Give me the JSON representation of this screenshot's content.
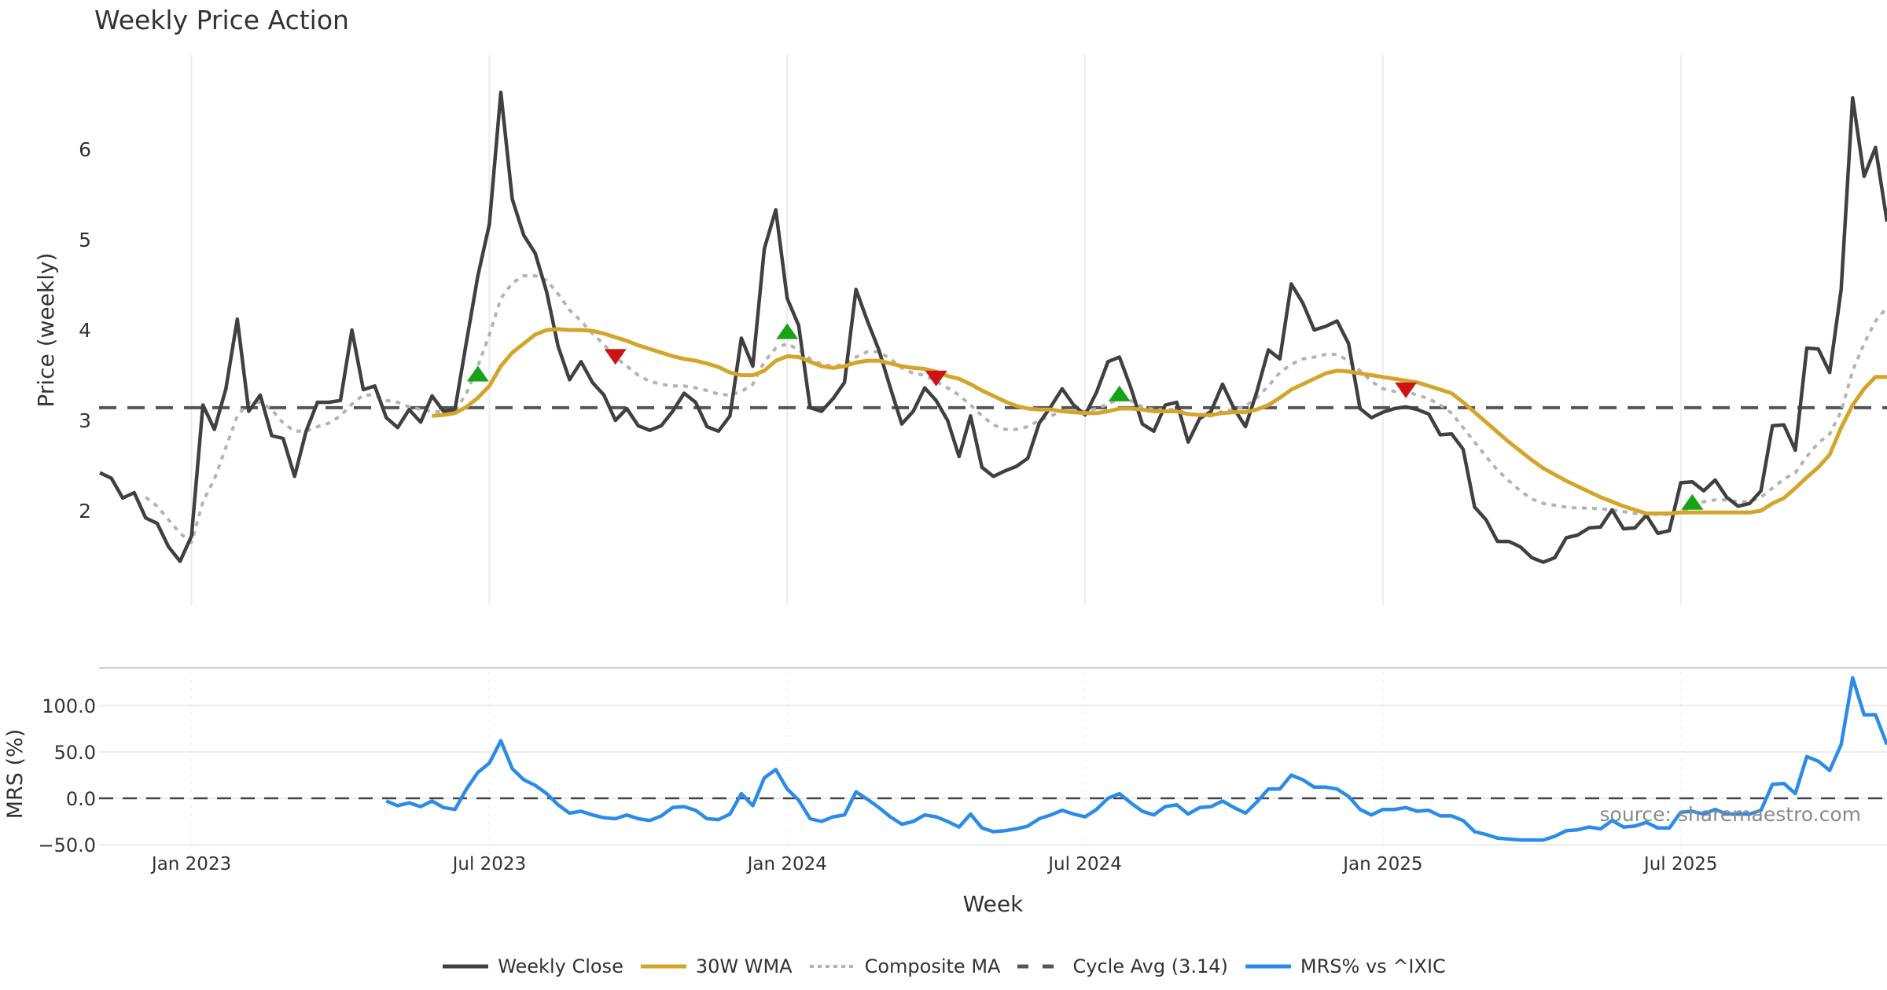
{
  "chart_data": {
    "type": "line",
    "title": "Weekly Price Action",
    "xlabel": "Week",
    "source": "source: sharemaestro.com",
    "colors": {
      "close": "#404040",
      "wma": "#d4a52a",
      "composite": "#b3b3b3",
      "cycle": "#555555",
      "mrs": "#2a8ce8",
      "buy": "#17a317",
      "sell": "#cc1414",
      "grid": "#e9ecf1"
    },
    "x_ticks": [
      {
        "label": "Jan 2023",
        "week_index": 8
      },
      {
        "label": "Jul 2023",
        "week_index": 34
      },
      {
        "label": "Jan 2024",
        "week_index": 60
      },
      {
        "label": "Jul 2024",
        "week_index": 86
      },
      {
        "label": "Jan 2025",
        "week_index": 112
      },
      {
        "label": "Jul 2025",
        "week_index": 138
      }
    ],
    "price_panel": {
      "ylabel": "Price (weekly)",
      "ylim": [
        0.96,
        7.04
      ],
      "y_ticks": [
        {
          "value": 2,
          "label": "2"
        },
        {
          "value": 3,
          "label": "3"
        },
        {
          "value": 4,
          "label": "4"
        },
        {
          "value": 5,
          "label": "5"
        },
        {
          "value": 6,
          "label": "6"
        }
      ],
      "cycle_avg": 3.14
    },
    "mrs_panel": {
      "ylabel": "MRS (%)",
      "ylim": [
        -55,
        140
      ],
      "y_ticks": [
        {
          "value": -50,
          "label": "−50.0"
        },
        {
          "value": 0,
          "label": "0.0"
        },
        {
          "value": 50,
          "label": "50.0"
        },
        {
          "value": 100,
          "label": "100.0"
        }
      ],
      "zero_line": 0
    },
    "series": [
      {
        "name": "Weekly Close",
        "key": "close",
        "start_index": 0,
        "values": [
          2.42,
          2.36,
          2.14,
          2.2,
          1.92,
          1.86,
          1.6,
          1.44,
          1.72,
          3.17,
          2.9,
          3.35,
          4.12,
          3.1,
          3.28,
          2.83,
          2.8,
          2.38,
          2.88,
          3.2,
          3.2,
          3.22,
          4.0,
          3.34,
          3.38,
          3.03,
          2.92,
          3.12,
          2.98,
          3.27,
          3.1,
          3.12,
          3.87,
          4.6,
          5.17,
          6.63,
          5.45,
          5.05,
          4.85,
          4.42,
          3.82,
          3.45,
          3.65,
          3.42,
          3.28,
          3.0,
          3.13,
          2.94,
          2.89,
          2.94,
          3.1,
          3.3,
          3.2,
          2.93,
          2.88,
          3.05,
          3.91,
          3.6,
          4.9,
          5.33,
          4.35,
          4.05,
          3.14,
          3.1,
          3.24,
          3.42,
          4.45,
          4.1,
          3.78,
          3.36,
          2.96,
          3.1,
          3.36,
          3.22,
          3.0,
          2.6,
          3.05,
          2.48,
          2.38,
          2.44,
          2.49,
          2.58,
          2.97,
          3.15,
          3.35,
          3.17,
          3.06,
          3.31,
          3.65,
          3.7,
          3.36,
          2.96,
          2.88,
          3.17,
          3.2,
          2.76,
          3.02,
          3.1,
          3.4,
          3.13,
          2.93,
          3.32,
          3.78,
          3.68,
          4.51,
          4.3,
          4.0,
          4.04,
          4.1,
          3.85,
          3.13,
          3.03,
          3.09,
          3.13,
          3.15,
          3.12,
          3.07,
          2.84,
          2.85,
          2.68,
          2.04,
          1.9,
          1.66,
          1.66,
          1.6,
          1.48,
          1.43,
          1.48,
          1.7,
          1.73,
          1.81,
          1.82,
          2.01,
          1.8,
          1.81,
          1.95,
          1.75,
          1.78,
          2.31,
          2.32,
          2.22,
          2.34,
          2.15,
          2.05,
          2.08,
          2.22,
          2.94,
          2.95,
          2.67,
          3.8,
          3.79,
          3.53,
          4.45,
          6.57,
          5.7,
          6.02,
          5.2
        ]
      },
      {
        "name": "30W WMA",
        "key": "wma",
        "start_index": 29,
        "values": [
          3.05,
          3.06,
          3.08,
          3.15,
          3.25,
          3.38,
          3.6,
          3.75,
          3.85,
          3.95,
          4.0,
          4.01,
          4.0,
          4.0,
          3.99,
          3.96,
          3.92,
          3.88,
          3.83,
          3.79,
          3.75,
          3.71,
          3.68,
          3.66,
          3.63,
          3.59,
          3.53,
          3.5,
          3.5,
          3.55,
          3.66,
          3.71,
          3.7,
          3.65,
          3.6,
          3.58,
          3.6,
          3.64,
          3.66,
          3.66,
          3.63,
          3.6,
          3.58,
          3.57,
          3.54,
          3.49,
          3.46,
          3.4,
          3.33,
          3.27,
          3.21,
          3.16,
          3.13,
          3.12,
          3.12,
          3.1,
          3.09,
          3.08,
          3.08,
          3.1,
          3.13,
          3.13,
          3.12,
          3.1,
          3.1,
          3.1,
          3.07,
          3.06,
          3.06,
          3.08,
          3.09,
          3.09,
          3.12,
          3.17,
          3.25,
          3.34,
          3.4,
          3.46,
          3.52,
          3.55,
          3.54,
          3.52,
          3.5,
          3.48,
          3.46,
          3.44,
          3.42,
          3.38,
          3.34,
          3.3,
          3.2,
          3.09,
          2.98,
          2.87,
          2.76,
          2.66,
          2.56,
          2.47,
          2.4,
          2.33,
          2.27,
          2.21,
          2.15,
          2.1,
          2.05,
          2.01,
          1.97,
          1.97,
          1.97,
          1.98,
          1.98,
          1.98,
          1.98,
          1.98,
          1.98,
          1.98,
          2.0,
          2.08,
          2.14,
          2.25,
          2.37,
          2.48,
          2.62,
          2.92,
          3.17,
          3.35,
          3.48,
          3.48
        ]
      },
      {
        "name": "Composite MA",
        "key": "composite",
        "start_index": 4,
        "values": [
          2.15,
          2.05,
          1.9,
          1.75,
          1.65,
          2.1,
          2.35,
          2.7,
          3.05,
          3.2,
          3.2,
          3.12,
          2.97,
          2.88,
          2.88,
          2.93,
          2.97,
          3.05,
          3.18,
          3.28,
          3.28,
          3.22,
          3.2,
          3.15,
          3.12,
          3.1,
          3.09,
          3.1,
          3.3,
          3.6,
          3.95,
          4.35,
          4.52,
          4.6,
          4.6,
          4.55,
          4.4,
          4.22,
          4.1,
          3.96,
          3.84,
          3.7,
          3.6,
          3.5,
          3.43,
          3.4,
          3.38,
          3.38,
          3.36,
          3.33,
          3.29,
          3.28,
          3.32,
          3.4,
          3.65,
          3.8,
          3.85,
          3.78,
          3.68,
          3.62,
          3.6,
          3.62,
          3.7,
          3.76,
          3.76,
          3.68,
          3.58,
          3.52,
          3.5,
          3.43,
          3.36,
          3.28,
          3.17,
          3.05,
          2.95,
          2.9,
          2.9,
          2.93,
          3.0,
          3.05,
          3.1,
          3.1,
          3.1,
          3.13,
          3.18,
          3.24,
          3.22,
          3.15,
          3.12,
          3.12,
          3.12,
          3.07,
          3.04,
          3.05,
          3.1,
          3.12,
          3.16,
          3.25,
          3.38,
          3.53,
          3.62,
          3.68,
          3.7,
          3.73,
          3.73,
          3.66,
          3.55,
          3.43,
          3.35,
          3.32,
          3.32,
          3.28,
          3.24,
          3.17,
          3.08,
          2.92,
          2.76,
          2.6,
          2.45,
          2.33,
          2.22,
          2.13,
          2.08,
          2.06,
          2.04,
          2.03,
          2.03,
          2.02,
          2.01,
          1.99,
          1.97,
          1.96,
          1.96,
          1.96,
          1.98,
          2.05,
          2.1,
          2.12,
          2.12,
          2.1,
          2.1,
          2.15,
          2.25,
          2.35,
          2.42,
          2.6,
          2.75,
          2.85,
          3.1,
          3.55,
          3.85,
          4.1,
          4.25
        ]
      },
      {
        "name": "Cycle Avg (3.14)",
        "key": "cycle",
        "value": 3.14
      },
      {
        "name": "MRS% vs ^IXIC",
        "key": "mrs",
        "start_index": 25,
        "values": [
          -3,
          -8,
          -5,
          -9,
          -3,
          -10,
          -12,
          10,
          28,
          38,
          62,
          32,
          20,
          14,
          5,
          -7,
          -16,
          -14,
          -18,
          -21,
          -22,
          -18,
          -22,
          -24,
          -19,
          -10,
          -9,
          -13,
          -22,
          -23,
          -17,
          5,
          -8,
          22,
          31,
          10,
          -2,
          -22,
          -25,
          -20,
          -18,
          7,
          -1,
          -10,
          -20,
          -28,
          -25,
          -18,
          -20,
          -25,
          -31,
          -17,
          -32,
          -36,
          -35,
          -33,
          -30,
          -22,
          -18,
          -13,
          -17,
          -20,
          -12,
          0,
          5,
          -5,
          -14,
          -18,
          -9,
          -7,
          -17,
          -10,
          -9,
          -3,
          -10,
          -16,
          -4,
          10,
          10,
          25,
          20,
          12,
          12,
          10,
          2,
          -12,
          -18,
          -12,
          -12,
          -10,
          -14,
          -13,
          -19,
          -19,
          -24,
          -36,
          -39,
          -43,
          -44,
          -45,
          -45,
          -45,
          -41,
          -35,
          -34,
          -31,
          -33,
          -24,
          -31,
          -30,
          -26,
          -32,
          -32,
          -15,
          -14,
          -17,
          -12,
          -17,
          -17,
          -17,
          -13,
          15,
          16,
          5,
          45,
          40,
          30,
          58,
          130,
          90,
          90,
          58
        ]
      }
    ],
    "signals": [
      {
        "type": "buy",
        "week_index": 33,
        "price": 3.5
      },
      {
        "type": "sell",
        "week_index": 45,
        "price": 3.72
      },
      {
        "type": "buy",
        "week_index": 60,
        "price": 3.97
      },
      {
        "type": "sell",
        "week_index": 73,
        "price": 3.48
      },
      {
        "type": "buy",
        "week_index": 89,
        "price": 3.28
      },
      {
        "type": "sell",
        "week_index": 114,
        "price": 3.35
      },
      {
        "type": "buy",
        "week_index": 139,
        "price": 2.08
      }
    ],
    "legend": {
      "position": "bottom-center",
      "entries": [
        {
          "label": "Weekly Close",
          "key": "close",
          "style": "solid"
        },
        {
          "label": "30W WMA",
          "key": "wma",
          "style": "solid"
        },
        {
          "label": "Composite MA",
          "key": "composite",
          "style": "dotted"
        },
        {
          "label": "Cycle Avg (3.14)",
          "key": "cycle",
          "style": "dashed"
        },
        {
          "label": "MRS% vs ^IXIC",
          "key": "mrs",
          "style": "solid"
        }
      ]
    },
    "total_weeks": 157
  }
}
